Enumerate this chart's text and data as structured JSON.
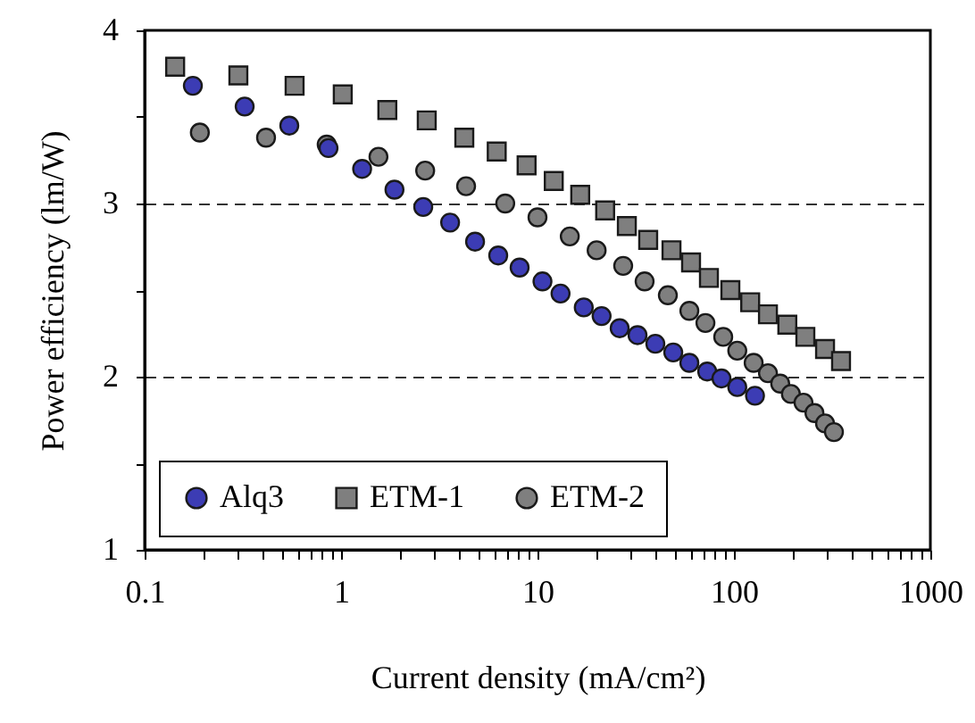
{
  "chart_data": {
    "type": "scatter",
    "xlabel": "Current density (mA/cm²)",
    "ylabel": "Power efficiency (lm/W)",
    "log": "x",
    "xlim": [
      0.1,
      1000
    ],
    "ylim": [
      1,
      4
    ],
    "xticks": [
      0.1,
      {
        "value": 0.2,
        "label": null
      },
      {
        "value": 0.3,
        "label": null
      },
      {
        "value": 0.4,
        "label": null
      },
      {
        "value": 0.5,
        "label": null
      },
      {
        "value": 0.6,
        "label": null
      },
      {
        "value": 0.7,
        "label": null
      },
      {
        "value": 0.8,
        "label": null
      },
      {
        "value": 0.9,
        "label": null
      },
      1,
      {
        "value": 2,
        "label": null
      },
      {
        "value": 3,
        "label": null
      },
      {
        "value": 4,
        "label": null
      },
      {
        "value": 5,
        "label": null
      },
      {
        "value": 6,
        "label": null
      },
      {
        "value": 7,
        "label": null
      },
      {
        "value": 8,
        "label": null
      },
      {
        "value": 9,
        "label": null
      },
      10,
      {
        "value": 20,
        "label": null
      },
      {
        "value": 30,
        "label": null
      },
      {
        "value": 40,
        "label": null
      },
      {
        "value": 50,
        "label": null
      },
      {
        "value": 60,
        "label": null
      },
      {
        "value": 70,
        "label": null
      },
      {
        "value": 80,
        "label": null
      },
      {
        "value": 90,
        "label": null
      },
      100,
      {
        "value": 200,
        "label": null
      },
      {
        "value": 300,
        "label": null
      },
      {
        "value": 400,
        "label": null
      },
      {
        "value": 500,
        "label": null
      },
      {
        "value": 600,
        "label": null
      },
      {
        "value": 700,
        "label": null
      },
      {
        "value": 800,
        "label": null
      },
      {
        "value": 900,
        "label": null
      },
      1000
    ],
    "yticks": [
      1,
      {
        "value": 1.5,
        "label": null
      },
      2,
      {
        "value": 2.5,
        "label": null
      },
      3,
      {
        "value": 3.5,
        "label": null
      },
      4
    ],
    "grid": "y",
    "line_style": "dashed",
    "legend": "bottom left",
    "series": [
      {
        "name": "Alq3",
        "color": "#3c3cb4",
        "marker": "circle",
        "x": [
          0.176,
          0.323,
          0.545,
          0.863,
          1.28,
          1.87,
          2.62,
          3.59,
          4.81,
          6.31,
          8.11,
          10.6,
          13.1,
          17.2,
          21.2,
          26.2,
          32.3,
          39.8,
          49.1,
          59.3,
          73.1,
          86.4,
          104,
          128
        ],
        "values": [
          3.68,
          3.56,
          3.45,
          3.32,
          3.2,
          3.08,
          2.98,
          2.89,
          2.78,
          2.7,
          2.63,
          2.55,
          2.48,
          2.4,
          2.35,
          2.28,
          2.24,
          2.19,
          2.14,
          2.08,
          2.03,
          1.99,
          1.94,
          1.89
        ]
      },
      {
        "name": "ETM-1",
        "color": "#7f7f7f",
        "marker": "square",
        "x": [
          0.143,
          0.3,
          0.58,
          1.02,
          1.72,
          2.73,
          4.24,
          6.2,
          8.8,
          12.1,
          16.5,
          22.1,
          28.5,
          36.6,
          48.1,
          60.5,
          74.6,
          95.9,
          121,
          149,
          187,
          231,
          291,
          351
        ],
        "values": [
          3.79,
          3.74,
          3.68,
          3.63,
          3.54,
          3.48,
          3.38,
          3.3,
          3.22,
          3.13,
          3.05,
          2.96,
          2.87,
          2.79,
          2.73,
          2.66,
          2.57,
          2.5,
          2.43,
          2.36,
          2.3,
          2.23,
          2.16,
          2.09
        ]
      },
      {
        "name": "ETM-2",
        "color": "#7f7f7f",
        "marker": "circle",
        "x": [
          0.191,
          0.415,
          0.845,
          1.55,
          2.68,
          4.33,
          6.85,
          10,
          14.6,
          20,
          27.3,
          35.1,
          46.1,
          59.3,
          71.6,
          88.2,
          104,
          126,
          149,
          172,
          195,
          226,
          257,
          291,
          323
        ],
        "values": [
          3.41,
          3.38,
          3.34,
          3.27,
          3.19,
          3.1,
          3.0,
          2.92,
          2.81,
          2.73,
          2.64,
          2.55,
          2.47,
          2.38,
          2.31,
          2.23,
          2.15,
          2.08,
          2.02,
          1.96,
          1.9,
          1.85,
          1.79,
          1.73,
          1.68
        ]
      }
    ]
  }
}
